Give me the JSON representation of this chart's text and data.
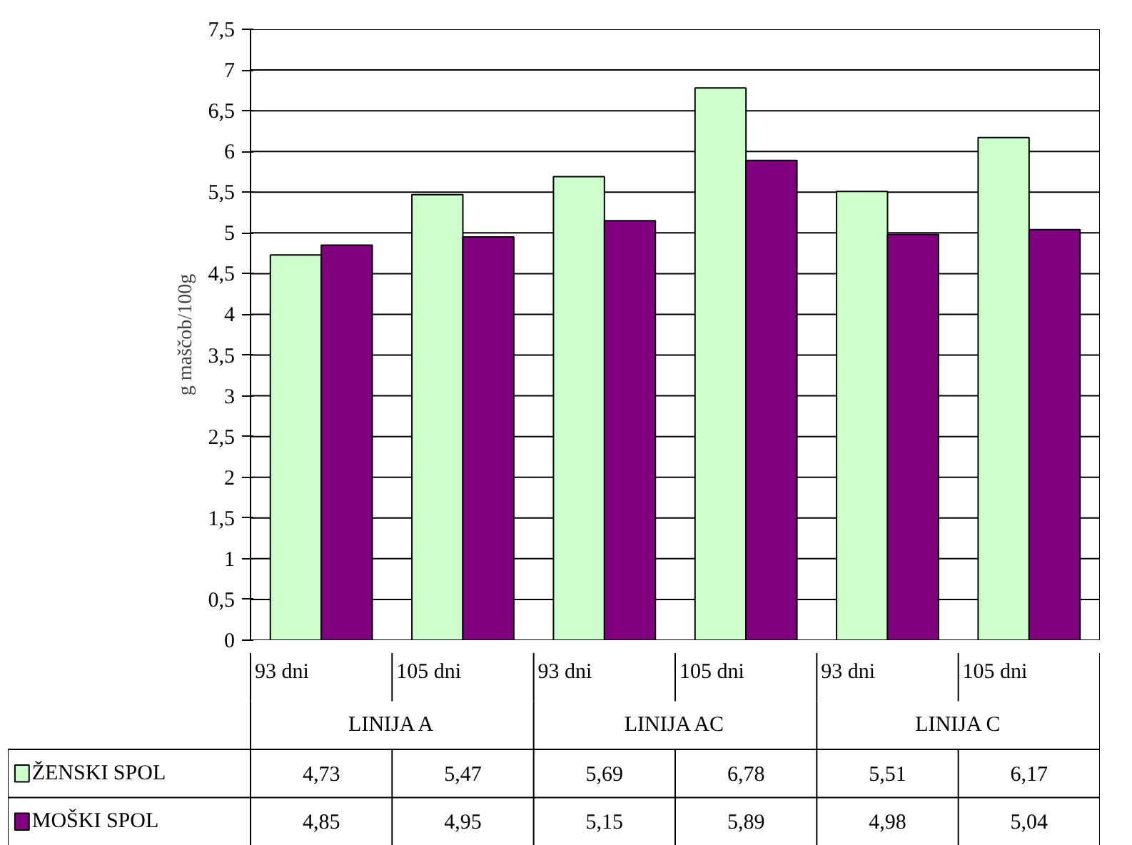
{
  "chart_data": {
    "type": "bar",
    "ylabel": "g maščob/100g",
    "categories": [
      "93 dni",
      "105 dni",
      "93 dni",
      "105 dni",
      "93 dni",
      "105 dni"
    ],
    "annotations": [
      "LINIJA A",
      "LINIJA AC",
      "LINIJA C"
    ],
    "series": [
      {
        "name": "ŽENSKI SPOL",
        "color": "#ccffcc",
        "values": [
          4.73,
          5.47,
          5.69,
          6.78,
          5.51,
          6.17
        ],
        "value_labels": [
          "4,73",
          "5,47",
          "5,69",
          "6,78",
          "5,51",
          "6,17"
        ]
      },
      {
        "name": "MOŠKI SPOL",
        "color": "#800080",
        "values": [
          4.85,
          4.95,
          5.15,
          5.89,
          4.98,
          5.04
        ],
        "value_labels": [
          "4,85",
          "4,95",
          "5,15",
          "5,89",
          "4,98",
          "5,04"
        ]
      }
    ],
    "ylim": [
      0,
      7.5
    ],
    "yticks": [
      0,
      {
        "value": 0.5,
        "label": "0,5"
      },
      1,
      {
        "value": 1.5,
        "label": "1,5"
      },
      2,
      {
        "value": 2.5,
        "label": "2,5"
      },
      3,
      {
        "value": 3.5,
        "label": "3,5"
      },
      4,
      {
        "value": 4.5,
        "label": "4,5"
      },
      5,
      {
        "value": 5.5,
        "label": "5,5"
      },
      6,
      {
        "value": 6.5,
        "label": "6,5"
      },
      7,
      {
        "value": 7.5,
        "label": "7,5"
      }
    ],
    "grid": "y",
    "legend": "bottom"
  }
}
